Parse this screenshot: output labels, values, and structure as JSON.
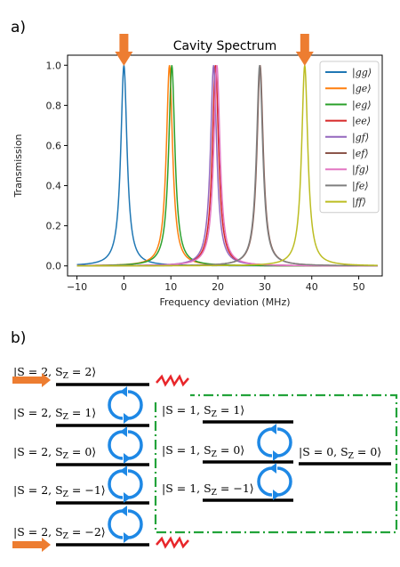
{
  "panel_a_label": "a)",
  "panel_b_label": "b)",
  "chart_data": {
    "type": "line",
    "title": "Cavity Spectrum",
    "xlabel": "Frequency deviation (MHz)",
    "ylabel": "Transmission",
    "xlim": [
      -12,
      55
    ],
    "ylim": [
      -0.05,
      1.05
    ],
    "xticks": [
      -10,
      0,
      10,
      20,
      30,
      40,
      50
    ],
    "yticks": [
      0.0,
      0.2,
      0.4,
      0.6,
      0.8,
      1.0
    ],
    "linewidth_mhz": 1.6,
    "legend_position": "top-right",
    "series": [
      {
        "name": "|gg⟩",
        "center": 0.0,
        "color": "#1f77b4"
      },
      {
        "name": "|ge⟩",
        "center": 9.7,
        "color": "#ff7f0e"
      },
      {
        "name": "|eg⟩",
        "center": 10.2,
        "color": "#2ca02c"
      },
      {
        "name": "|ee⟩",
        "center": 19.5,
        "color": "#d62728"
      },
      {
        "name": "|gf⟩",
        "center": 19.1,
        "color": "#9467bd"
      },
      {
        "name": "|ef⟩",
        "center": 29.0,
        "color": "#8c564b"
      },
      {
        "name": "|fg⟩",
        "center": 19.8,
        "color": "#e377c2"
      },
      {
        "name": "|fe⟩",
        "center": 28.9,
        "color": "#7f7f7f"
      },
      {
        "name": "|ff⟩",
        "center": 38.5,
        "color": "#bcbd22"
      }
    ]
  },
  "arrow_markers": [
    0.0,
    38.5
  ],
  "diagram": {
    "s2_states": [
      "|S = 2, S_Z = 2⟩",
      "|S = 2, S_Z = 1⟩",
      "|S = 2, S_Z = 0⟩",
      "|S = 2, S_Z = −1⟩",
      "|S = 2, S_Z = −2⟩"
    ],
    "s1_states": [
      "|S = 1, S_Z = 1⟩",
      "|S = 1, S_Z = 0⟩",
      "|S = 1, S_Z = −1⟩"
    ],
    "s0_states": [
      "|S = 0, S_Z = 0⟩"
    ],
    "colors": {
      "arrow": "#ed7d31",
      "cycle": "#1e88e5",
      "zigzag": "#e8262a",
      "box": "#22a33a"
    }
  }
}
